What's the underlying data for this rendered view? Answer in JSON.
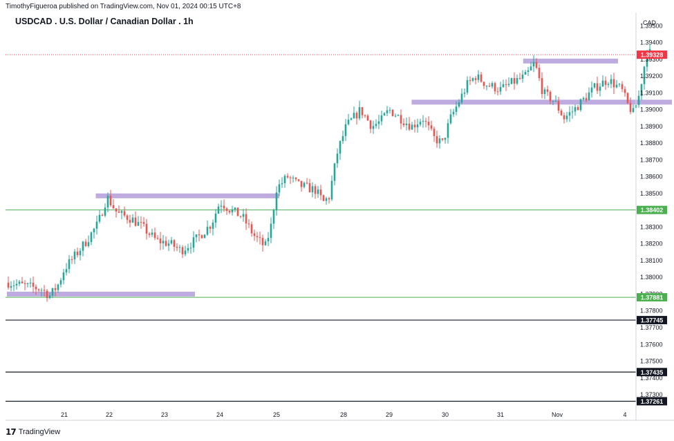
{
  "header": {
    "published": "TimothyFigueroa published on TradingView.com, Nov 01, 2024 00:15 UTC+8"
  },
  "chart_data": {
    "type": "candlestick",
    "title": "USDCAD . U.S. Dollar / Canadian Dollar . 1h",
    "currency": "CAD",
    "ylim": [
      1.3723,
      1.3958
    ],
    "y_ticks": [
      "1.39500",
      "1.39400",
      "1.39300",
      "1.39200",
      "1.39100",
      "1.39000",
      "1.38900",
      "1.38800",
      "1.38700",
      "1.38600",
      "1.38500",
      "1.38400",
      "1.38300",
      "1.38200",
      "1.38100",
      "1.38000",
      "1.37900",
      "1.37800",
      "1.37700",
      "1.37600",
      "1.37500",
      "1.37400",
      "1.37300"
    ],
    "x_ticks": [
      "21",
      "22",
      "23",
      "24",
      "25",
      "28",
      "29",
      "30",
      "31",
      "Nov",
      "4"
    ],
    "colors": {
      "up": "#26a69a",
      "down": "#ef5350",
      "zone": "#b39ddb",
      "green_line": "#4caf50",
      "black_line": "#131722",
      "price_line": "#f23645"
    },
    "current_price": {
      "value": 1.39328,
      "label": "1.39328"
    },
    "price_levels": [
      {
        "label": "1.38402",
        "value": 1.38402,
        "style": "green"
      },
      {
        "label": "1.37881",
        "value": 1.37881,
        "style": "green"
      },
      {
        "label": "1.37745",
        "value": 1.37745,
        "style": "black"
      },
      {
        "label": "1.37435",
        "value": 1.37435,
        "style": "black"
      },
      {
        "label": "1.37261",
        "value": 1.37261,
        "style": "black"
      }
    ],
    "zones": [
      {
        "price": 1.379,
        "x_start": "20",
        "x_end": "23.55"
      },
      {
        "price": 1.38486,
        "x_start": "21.7",
        "x_end": "25.05"
      },
      {
        "price": 1.39045,
        "x_start": "27.4",
        "x_end": "31.85"
      },
      {
        "price": 1.3929,
        "x_start": "29.4",
        "x_end": "Nov+1.1"
      }
    ],
    "path_anchors": [
      [
        "20.0",
        1.3797
      ],
      [
        "20.3",
        1.3795
      ],
      [
        "20.6",
        1.3793
      ],
      [
        "20.75",
        1.3789
      ],
      [
        "20.9",
        1.3796
      ],
      [
        "21.0",
        1.3805
      ],
      [
        "21.3",
        1.3815
      ],
      [
        "21.5",
        1.3822
      ],
      [
        "21.75",
        1.3832
      ],
      [
        "21.95",
        1.3848
      ],
      [
        "22.15",
        1.3838
      ],
      [
        "22.4",
        1.3835
      ],
      [
        "22.6",
        1.383
      ],
      [
        "22.85",
        1.3822
      ],
      [
        "23.1",
        1.382
      ],
      [
        "23.3",
        1.3816
      ],
      [
        "23.55",
        1.3822
      ],
      [
        "23.85",
        1.3832
      ],
      [
        "24.0",
        1.3845
      ],
      [
        "24.2",
        1.384
      ],
      [
        "24.4",
        1.3836
      ],
      [
        "24.6",
        1.3825
      ],
      [
        "24.8",
        1.3818
      ],
      [
        "24.9",
        1.383
      ],
      [
        "25.0",
        1.3853
      ],
      [
        "25.2",
        1.386
      ],
      [
        "25.4",
        1.3855
      ],
      [
        "25.7",
        1.3852
      ],
      [
        "25.85",
        1.3845
      ],
      [
        "25.95",
        1.3848
      ],
      [
        "26.1",
        1.3875
      ],
      [
        "26.25",
        1.389
      ],
      [
        "26.5",
        1.39
      ],
      [
        "26.7",
        1.389
      ],
      [
        "26.85",
        1.3893
      ],
      [
        "27.0",
        1.39
      ],
      [
        "27.2",
        1.3895
      ],
      [
        "27.4",
        1.389
      ],
      [
        "27.6",
        1.3895
      ],
      [
        "27.8",
        1.3883
      ],
      [
        "27.95",
        1.388
      ],
      [
        "28.1",
        1.3895
      ],
      [
        "28.25",
        1.3905
      ],
      [
        "28.4",
        1.3915
      ],
      [
        "28.55",
        1.392
      ],
      [
        "28.75",
        1.3915
      ],
      [
        "29.0",
        1.3912
      ],
      [
        "29.2",
        1.3916
      ],
      [
        "29.45",
        1.392
      ],
      [
        "29.6",
        1.3928
      ],
      [
        "29.75",
        1.391
      ],
      [
        "29.95",
        1.3905
      ],
      [
        "30.1",
        1.3895
      ],
      [
        "30.25",
        1.39
      ],
      [
        "30.55",
        1.3913
      ],
      [
        "30.75",
        1.3918
      ],
      [
        "30.95",
        1.3912
      ],
      [
        "31.05",
        1.3903
      ],
      [
        "31.15",
        1.3898
      ],
      [
        "31.25",
        1.3908
      ],
      [
        "31.4",
        1.3935
      ],
      [
        "31.48",
        1.3933
      ]
    ]
  },
  "footer": {
    "brand": "TradingView",
    "logo": "tradingview-logo-icon"
  }
}
